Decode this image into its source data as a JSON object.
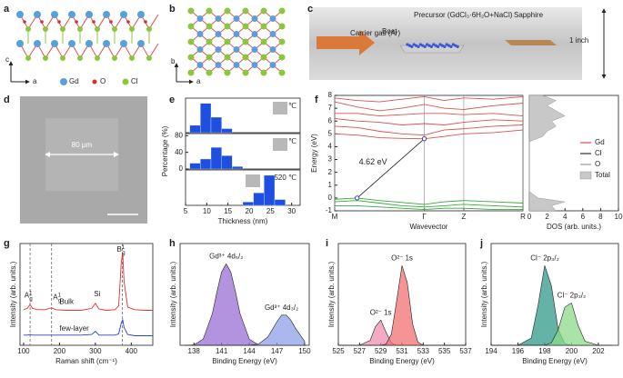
{
  "panel_labels": [
    "a",
    "b",
    "c",
    "d",
    "e",
    "f",
    "g",
    "h",
    "i",
    "j"
  ],
  "structure": {
    "axes_a": [
      "c",
      "a"
    ],
    "axes_b": [
      "b",
      "a"
    ],
    "legend": [
      "Gd",
      "O",
      "Cl"
    ]
  },
  "setup": {
    "carrier_gas": "Carrier gas (Ar)",
    "precursor": "Precursor (GdCl₃·6H₂O+NaCl)",
    "boat": "Boat",
    "sapphire": "Sapphire",
    "size": "1 inch"
  },
  "sem": {
    "scale": "80 μm"
  },
  "chart_data": [
    {
      "type": "histogram",
      "annotation": "480 ℃",
      "color": "#1f4fe0",
      "bins": [
        6,
        8.5,
        11,
        13.5,
        16
      ],
      "values": [
        18,
        72,
        38,
        10
      ],
      "xlim": [
        5,
        32
      ],
      "ylim": [
        0,
        85
      ]
    },
    {
      "type": "histogram",
      "annotation": "500 ℃",
      "color": "#1f4fe0",
      "ylabel": "Percentage (%)",
      "bins": [
        6,
        8.5,
        11,
        13.5,
        16,
        18.5
      ],
      "values": [
        14,
        24,
        52,
        32,
        6
      ],
      "xlim": [
        5,
        32
      ],
      "ylim": [
        0,
        85
      ],
      "yticks": [
        0,
        40,
        80
      ]
    },
    {
      "type": "histogram",
      "annotation": "520 ℃",
      "color": "#1f4fe0",
      "xlabel": "Thickness (nm)",
      "bins": [
        18.5,
        21,
        23.5,
        26,
        28.5
      ],
      "values": [
        8,
        30,
        72,
        14
      ],
      "xlim": [
        5,
        32
      ],
      "ylim": [
        0,
        85
      ],
      "xticks": [
        5,
        10,
        15,
        20,
        25,
        30
      ]
    },
    {
      "type": "line",
      "xlabel": "Wavevector",
      "ylabel": "Energy (eV)",
      "grid": true,
      "x": [
        0,
        0.25,
        0.5,
        0.75,
        1,
        1.22,
        1.44,
        1.77,
        2.1
      ],
      "xlim": [
        0,
        2.1
      ],
      "ylim": [
        -1,
        8
      ],
      "yticks": [
        -1,
        0,
        1,
        2,
        3,
        4,
        5,
        6,
        7,
        8
      ],
      "xticks": [
        {
          "value": 0,
          "label": "M"
        },
        {
          "value": 1,
          "label": "Γ"
        },
        {
          "value": 1.44,
          "label": "Z"
        },
        {
          "value": 2.1,
          "label": "R"
        }
      ],
      "gap": {
        "label": "4.62 eV",
        "from": [
          0.25,
          0
        ],
        "to": [
          1,
          4.62
        ]
      },
      "series": [
        {
          "color": "#d9534f",
          "values": [
            5.0,
            4.9,
            4.7,
            4.65,
            4.62,
            4.8,
            5.0,
            5.1,
            5.3
          ]
        },
        {
          "color": "#d9534f",
          "values": [
            5.6,
            5.5,
            5.2,
            5.0,
            4.9,
            5.3,
            5.4,
            5.6,
            5.7
          ]
        },
        {
          "color": "#d9534f",
          "values": [
            6.2,
            6.0,
            5.9,
            5.7,
            5.8,
            5.7,
            5.9,
            6.1,
            6.0
          ]
        },
        {
          "color": "#d9534f",
          "values": [
            6.6,
            6.6,
            6.4,
            6.5,
            6.6,
            6.6,
            6.5,
            6.6,
            6.4
          ]
        },
        {
          "color": "#d9534f",
          "values": [
            7.5,
            7.1,
            6.8,
            7.0,
            7.3,
            7.0,
            6.9,
            7.2,
            7.4
          ]
        },
        {
          "color": "#d9534f",
          "values": [
            7.8,
            7.6,
            7.5,
            7.7,
            7.9,
            7.6,
            7.8,
            7.7,
            7.9
          ]
        },
        {
          "color": "#3aa93a",
          "values": [
            -0.1,
            0,
            -0.2,
            -0.35,
            -0.5,
            -0.3,
            -0.2,
            -0.3,
            -0.4
          ]
        },
        {
          "color": "#3aa93a",
          "values": [
            -0.3,
            -0.2,
            -0.4,
            -0.6,
            -0.7,
            -0.6,
            -0.5,
            -0.6,
            -0.7
          ]
        },
        {
          "color": "#3aa93a",
          "values": [
            -0.6,
            -0.6,
            -0.7,
            -0.8,
            -0.9,
            -0.8,
            -0.8,
            -0.9,
            -0.9
          ]
        }
      ]
    },
    {
      "type": "area",
      "orientation": "horizontal",
      "xlabel": "DOS (arb. units.)",
      "legend": "right",
      "xlim": [
        0,
        10
      ],
      "xticks": [
        0,
        2,
        4,
        6,
        8,
        10
      ],
      "ylim": [
        -1,
        8
      ],
      "y": [
        -1,
        -0.6,
        -0.3,
        0,
        0.5,
        1,
        2,
        3,
        4,
        4.4,
        4.8,
        5.2,
        5.6,
        6,
        6.4,
        6.8,
        7.2,
        7.6,
        8
      ],
      "series": [
        {
          "name": "Gd",
          "color": "#d9534f",
          "values": [
            0.3,
            0.3,
            0.5,
            0.1,
            0,
            0,
            0,
            0,
            0,
            0,
            1.2,
            1.6,
            2.5,
            2,
            3.2,
            2.5,
            1.6,
            2.4,
            1.2
          ]
        },
        {
          "name": "Cl",
          "color": "#333333",
          "values": [
            1.5,
            1.2,
            2,
            0.5,
            0,
            0,
            0,
            0,
            0,
            0,
            0.1,
            0.2,
            0.3,
            0.2,
            0.3,
            0.3,
            0.2,
            0.3,
            0.2
          ]
        },
        {
          "name": "O",
          "color": "#999999",
          "values": [
            1,
            0.8,
            1.5,
            0.3,
            0,
            0,
            0,
            0,
            0,
            0,
            0.1,
            0.1,
            0.2,
            0.2,
            0.3,
            0.2,
            0.2,
            0.2,
            0.1
          ]
        },
        {
          "name": "Total",
          "color": "#c8c8c8",
          "fill": true,
          "values": [
            3,
            2.5,
            4,
            1,
            0,
            0,
            0,
            0,
            0,
            0,
            1.5,
            2,
            3,
            2.5,
            4,
            3,
            2,
            3,
            1.5
          ]
        }
      ]
    },
    {
      "type": "line",
      "xlabel": "Raman shift (cm⁻¹)",
      "ylabel": "Intensity (arb. units.)",
      "xlim": [
        90,
        460
      ],
      "ylim": [
        0,
        1.6
      ],
      "xticks": [
        100,
        200,
        300,
        400
      ],
      "vlines": [
        118,
        178,
        375
      ],
      "peaks": [
        {
          "base": "A",
          "sup": "1",
          "sub": "g"
        },
        {
          "base": "A",
          "sup": "1",
          "sub": "g"
        },
        "Si",
        {
          "base": "B",
          "sup": "1",
          "sub": "g"
        }
      ],
      "x": [
        100,
        110,
        118,
        125,
        140,
        160,
        178,
        190,
        220,
        260,
        290,
        300,
        310,
        330,
        355,
        365,
        372,
        376,
        380,
        390,
        410,
        440,
        460
      ],
      "series": [
        {
          "name": "Bulk",
          "color": "#e03030",
          "values": [
            0.56,
            0.58,
            0.64,
            0.58,
            0.56,
            0.56,
            0.59,
            0.56,
            0.55,
            0.55,
            0.58,
            0.66,
            0.57,
            0.55,
            0.56,
            0.62,
            1.3,
            1.45,
            1.0,
            0.6,
            0.56,
            0.55,
            0.55
          ]
        },
        {
          "name": "few-layer",
          "color": "#2a3fd0",
          "values": [
            0.16,
            0.16,
            0.17,
            0.16,
            0.16,
            0.16,
            0.16,
            0.16,
            0.16,
            0.16,
            0.17,
            0.22,
            0.16,
            0.16,
            0.16,
            0.18,
            0.35,
            0.4,
            0.28,
            0.17,
            0.15,
            0.15,
            0.15
          ]
        }
      ]
    },
    {
      "type": "area",
      "xlabel": "Binding Energy (eV)",
      "ylabel": "Intensity (arb. units.)",
      "xlim": [
        136.5,
        150.5
      ],
      "ylim": [
        0,
        1.25
      ],
      "xticks": [
        138,
        141,
        144,
        147,
        150
      ],
      "x": [
        137,
        138,
        139,
        140,
        140.5,
        141,
        141.5,
        142,
        142.5,
        143,
        144,
        145,
        146,
        147,
        147.5,
        148,
        148.5,
        149,
        150
      ],
      "series": [
        {
          "name": "Gd³⁺ 4d₅/₂",
          "color": "#9a6fd6",
          "values": [
            0,
            0.006,
            0.076,
            0.39,
            0.66,
            0.9,
            1,
            0.9,
            0.66,
            0.39,
            0.076,
            0.006,
            0,
            0,
            0,
            0,
            0,
            0,
            0
          ]
        },
        {
          "name": "Gd³⁺ 4d₃/₂",
          "color": "#8ea0e8",
          "values": [
            0,
            0,
            0,
            0,
            0,
            0,
            0,
            0,
            0,
            0,
            0,
            0.015,
            0.1,
            0.29,
            0.37,
            0.37,
            0.31,
            0.21,
            0.05
          ]
        }
      ]
    },
    {
      "type": "area",
      "xlabel": "Binding Energy (eV)",
      "ylabel": "Intensity (arb. units.)",
      "xlim": [
        525,
        537
      ],
      "ylim": [
        0,
        1.25
      ],
      "xticks": [
        525,
        527,
        529,
        531,
        533,
        535,
        537
      ],
      "x": [
        525,
        526,
        527,
        528,
        528.5,
        529,
        529.5,
        530,
        530.5,
        531,
        531.5,
        532,
        532.5,
        533,
        534,
        535,
        536,
        537
      ],
      "series": [
        {
          "name": "O²⁻ 1s",
          "color": "#ef8fb0",
          "values": [
            0,
            0,
            0,
            0.06,
            0.23,
            0.31,
            0.16,
            0.03,
            0,
            0,
            0,
            0,
            0,
            0,
            0,
            0,
            0,
            0
          ]
        },
        {
          "name": "O²⁻ 1s",
          "color": "#f07070",
          "values": [
            0,
            0,
            0,
            0,
            0,
            0,
            0.015,
            0.135,
            0.55,
            0.98,
            0.77,
            0.26,
            0.039,
            0,
            0,
            0,
            0,
            0
          ]
        }
      ]
    },
    {
      "type": "area",
      "xlabel": "Binding Energy (eV)",
      "ylabel": "Intensity (arb. units.)",
      "xlim": [
        194,
        203.5
      ],
      "ylim": [
        0,
        1.25
      ],
      "xticks": [
        194,
        196,
        198,
        200,
        202
      ],
      "x": [
        194,
        195,
        196,
        197,
        197.5,
        198,
        198.5,
        199,
        199.5,
        200,
        200.5,
        201,
        202,
        203
      ],
      "series": [
        {
          "name": "Cl⁻ 2p₃/₂",
          "color": "#2f9a8a",
          "values": [
            0,
            0,
            0,
            0.089,
            0.49,
            0.98,
            0.73,
            0.2,
            0.02,
            0,
            0,
            0,
            0,
            0
          ]
        },
        {
          "name": "Cl⁻ 2p₃/₂",
          "color": "#8ed98a",
          "values": [
            0,
            0,
            0,
            0,
            0,
            0,
            0.03,
            0.19,
            0.47,
            0.52,
            0.24,
            0.05,
            0,
            0
          ]
        }
      ]
    }
  ]
}
